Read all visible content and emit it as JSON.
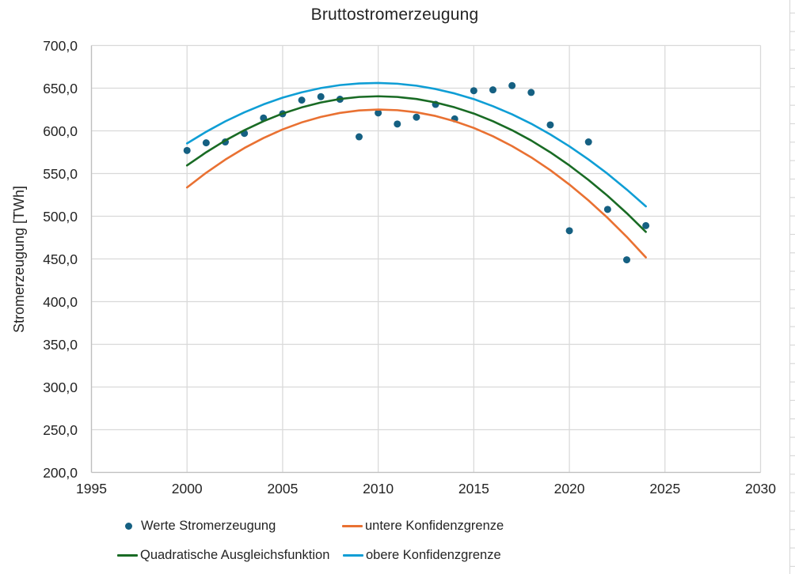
{
  "chart": {
    "title": "Bruttostromerzeugung",
    "y_axis_title": "Stromerzeugung [TWh]",
    "text_color": "#242424",
    "gridline_color": "#D9D9D9",
    "axis_line_color": "#BFBFBF",
    "background": "#FFFFFF"
  },
  "chart_data": {
    "type": "scatter",
    "title": "Bruttostromerzeugung",
    "xlabel": "",
    "ylabel": "Stromerzeugung [TWh]",
    "xlim": [
      1995,
      2030
    ],
    "ylim": [
      200,
      700
    ],
    "grid": true,
    "legend_position": "bottom",
    "x_ticks": [
      1995,
      2000,
      2005,
      2010,
      2015,
      2020,
      2025,
      2030
    ],
    "y_ticks": [
      {
        "value": 700,
        "label": "700,0"
      },
      {
        "value": 650,
        "label": "650,0"
      },
      {
        "value": 600,
        "label": "600,0"
      },
      {
        "value": 550,
        "label": "550,0"
      },
      {
        "value": 500,
        "label": "500,0"
      },
      {
        "value": 450,
        "label": "450,0"
      },
      {
        "value": 400,
        "label": "400,0"
      },
      {
        "value": 350,
        "label": "350,0"
      },
      {
        "value": 300,
        "label": "300,0"
      },
      {
        "value": 250,
        "label": "250,0"
      },
      {
        "value": 200,
        "label": "200,0"
      }
    ],
    "x": [
      2000,
      2001,
      2002,
      2003,
      2004,
      2005,
      2006,
      2007,
      2008,
      2009,
      2010,
      2011,
      2012,
      2013,
      2014,
      2015,
      2016,
      2017,
      2018,
      2019,
      2020,
      2021,
      2022,
      2023,
      2024
    ],
    "series": [
      {
        "name": "Werte Stromerzeugung",
        "type": "points",
        "color": "#156082",
        "marker_radius": 4.5,
        "values": [
          577,
          586,
          587,
          597,
          615,
          620,
          636,
          640,
          637,
          593,
          621,
          608,
          616,
          631,
          614,
          647,
          648,
          653,
          645,
          607,
          483,
          587,
          508,
          449,
          489
        ]
      },
      {
        "name": "Quadratische Ausgleichsfunktion",
        "type": "line",
        "color": "#196B24",
        "values": [
          559.5,
          574.9,
          588.7,
          600.8,
          611.3,
          620.3,
          627.5,
          633.2,
          637.3,
          639.7,
          640.5,
          639.7,
          637.3,
          633.2,
          627.5,
          620.3,
          611.3,
          600.8,
          588.7,
          574.9,
          559.5,
          542.5,
          523.9,
          503.6,
          481.7
        ]
      },
      {
        "name": "untere Konfidenzgrenze",
        "type": "line",
        "color": "#E97132",
        "values": [
          533.7,
          550.9,
          566.3,
          579.9,
          591.6,
          601.7,
          609.9,
          616.3,
          621.0,
          623.9,
          624.9,
          624.2,
          621.7,
          617.4,
          611.2,
          603.4,
          593.7,
          582.2,
          569.0,
          554.0,
          537.1,
          518.5,
          498.1,
          475.9,
          451.8
        ]
      },
      {
        "name": "obere Konfidenzgrenze",
        "type": "line",
        "color": "#0F9ED5",
        "values": [
          585.3,
          598.9,
          611.1,
          621.7,
          631.0,
          638.9,
          645.1,
          650.1,
          653.6,
          655.5,
          656.1,
          655.2,
          652.9,
          649.0,
          643.8,
          637.2,
          628.9,
          619.4,
          608.4,
          595.8,
          581.9,
          566.5,
          549.7,
          531.3,
          511.6
        ]
      }
    ]
  },
  "legend": {
    "rows": [
      {
        "items": [
          {
            "label": "Werte Stromerzeugung",
            "marker": "dot",
            "color": "#156082"
          },
          {
            "label": "untere Konfidenzgrenze",
            "marker": "line",
            "color": "#E97132"
          }
        ]
      },
      {
        "items": [
          {
            "label": "Quadratische Ausgleichsfunktion",
            "marker": "line",
            "color": "#196B24"
          },
          {
            "label": "obere Konfidenzgrenze",
            "marker": "line",
            "color": "#0F9ED5"
          }
        ]
      }
    ]
  }
}
